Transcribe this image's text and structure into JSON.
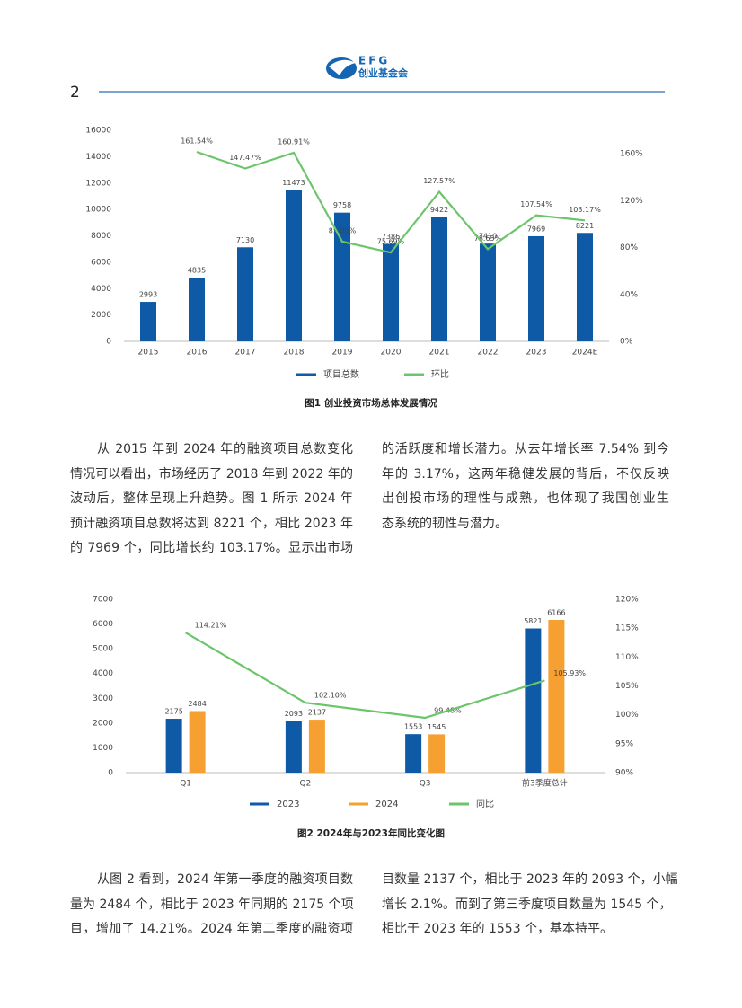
{
  "header": {
    "logo_text": "EFG",
    "logo_subtitle": "创业基金会",
    "page_number": "2"
  },
  "chart_data": [
    {
      "type": "combo",
      "title": "图1  创业投资市场总体发展情况",
      "categories": [
        "2015",
        "2016",
        "2017",
        "2018",
        "2019",
        "2020",
        "2021",
        "2022",
        "2023",
        "2024E"
      ],
      "series": [
        {
          "name": "项目总数",
          "type": "bar",
          "color": "#0e5aa7",
          "values": [
            2993,
            4835,
            7130,
            11473,
            9758,
            7386,
            9422,
            7410,
            7969,
            8221
          ]
        },
        {
          "name": "环比",
          "type": "line",
          "axis": "y2",
          "color": "#6cc56a",
          "values": [
            null,
            161.54,
            147.47,
            160.91,
            85.05,
            75.69,
            127.57,
            78.65,
            107.54,
            103.17
          ],
          "value_labels": [
            null,
            "161.54%",
            "147.47%",
            "160.91%",
            "85.05%",
            "75.69%",
            "127.57%",
            "78.65%",
            "107.54%",
            "103.17%"
          ]
        }
      ],
      "ylim": [
        0,
        16000
      ],
      "yticks": [
        0,
        2000,
        4000,
        6000,
        8000,
        10000,
        12000,
        14000,
        16000
      ],
      "y2lim": [
        0,
        180
      ],
      "y2ticks": [
        {
          "value": 0,
          "label": "0%"
        },
        {
          "value": 40,
          "label": "40%"
        },
        {
          "value": 80,
          "label": "80%"
        },
        {
          "value": 120,
          "label": "120%"
        },
        {
          "value": 160,
          "label": "160%"
        }
      ],
      "grid": false,
      "legend": "bottom"
    },
    {
      "type": "combo",
      "title": "图2   2024年与2023年同比变化图",
      "categories": [
        "Q1",
        "Q2",
        "Q3",
        "前3季度总计"
      ],
      "series": [
        {
          "name": "2023",
          "type": "bar",
          "color": "#0e5aa7",
          "values": [
            2175,
            2093,
            1553,
            5821
          ]
        },
        {
          "name": "2024",
          "type": "bar",
          "color": "#f5a030",
          "values": [
            2484,
            2137,
            1545,
            6166
          ]
        },
        {
          "name": "同比",
          "type": "line",
          "axis": "y2",
          "color": "#6cc56a",
          "values": [
            114.21,
            102.1,
            99.48,
            105.93
          ],
          "value_labels": [
            "114.21%",
            "102.10%",
            "99.48%",
            "105.93%"
          ]
        }
      ],
      "ylim": [
        0,
        7000
      ],
      "yticks": [
        0,
        1000,
        2000,
        3000,
        4000,
        5000,
        6000,
        7000
      ],
      "y2lim": [
        90,
        120
      ],
      "y2ticks": [
        {
          "value": 90,
          "label": "90%"
        },
        {
          "value": 95,
          "label": "95%"
        },
        {
          "value": 100,
          "label": "100%"
        },
        {
          "value": 105,
          "label": "105%"
        },
        {
          "value": 110,
          "label": "110%"
        },
        {
          "value": 115,
          "label": "115%"
        },
        {
          "value": 120,
          "label": "120%"
        }
      ],
      "grid": false,
      "legend": "bottom"
    }
  ],
  "text_blocks": [
    {
      "columns": [
        [
          "从 2015 年到 2024 年的融资项目总数变化",
          "情况可以看出，市场经历了 2018 年到 2022 年的",
          "波动后，整体呈现上升趋势。图 1 所示 2024 年",
          "预计融资项目总数将达到 8221 个，相比 2023 年",
          "的 7969 个，同比增长约 103.17%。显示出市场"
        ],
        [
          "的活跃度和增长潜力。从去年增长率 7.54% 到今",
          "年的 3.17%，这两年稳健发展的背后，不仅反映",
          "出创投市场的理性与成熟，也体现了我国创业生",
          "态系统的韧性与潜力。"
        ]
      ]
    },
    {
      "columns": [
        [
          "从图 2 看到，2024 年第一季度的融资项目数",
          "量为 2484 个，相比于 2023 年同期的 2175 个项",
          "目，增加了 14.21%。2024 年第二季度的融资项"
        ],
        [
          "目数量 2137 个，相比于 2023 年的 2093 个，小幅",
          "增长 2.1%。而到了第三季度项目数量为 1545 个，",
          "相比于 2023 年的 1553 个，基本持平。"
        ]
      ]
    }
  ]
}
